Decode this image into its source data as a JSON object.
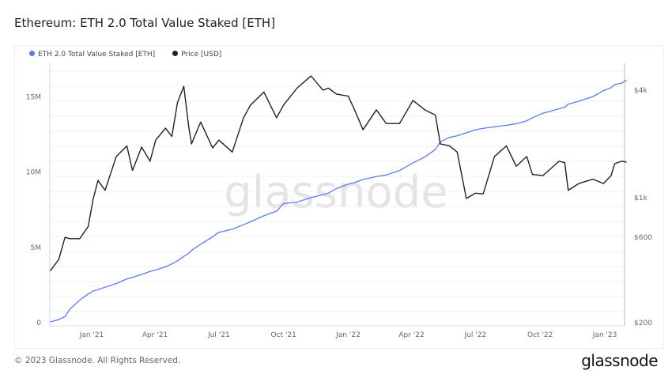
{
  "title": "Ethereum: ETH 2.0 Total Value Staked [ETH]",
  "footer": "© 2023 Glassnode. All Rights Reserved.",
  "brand": "glassnode",
  "watermark": "glassnode",
  "chart_data": {
    "type": "line",
    "title": "Ethereum: ETH 2.0 Total Value Staked [ETH]",
    "legend_position": "top-left",
    "grid": true,
    "x_ticks": [
      "Jan '21",
      "Apr '21",
      "Jul '21",
      "Oct '21",
      "Jan '22",
      "Apr '22",
      "Jul '22",
      "Oct '22",
      "Jan '23"
    ],
    "x_tick_dates": [
      "2021-01-01",
      "2021-04-01",
      "2021-07-01",
      "2021-10-01",
      "2022-01-01",
      "2022-04-01",
      "2022-07-01",
      "2022-10-01",
      "2023-01-01"
    ],
    "y_left": {
      "ticks": [
        "0",
        "5M",
        "10M",
        "15M"
      ],
      "tick_values": [
        0,
        5,
        10,
        15
      ],
      "unit": "M ETH",
      "range": [
        0,
        16.5
      ]
    },
    "y_right": {
      "scale": "log",
      "ticks": [
        "$200",
        "$600",
        "$1k",
        "$4k"
      ],
      "tick_values": [
        200,
        600,
        1000,
        4000
      ],
      "range": [
        190,
        5200
      ]
    },
    "x": [
      "2020-11-03",
      "2020-11-15",
      "2020-11-24",
      "2020-12-01",
      "2020-12-15",
      "2020-12-27",
      "2021-01-03",
      "2021-01-10",
      "2021-01-20",
      "2021-02-05",
      "2021-02-20",
      "2021-02-28",
      "2021-03-13",
      "2021-03-25",
      "2021-04-02",
      "2021-04-16",
      "2021-04-25",
      "2021-05-03",
      "2021-05-12",
      "2021-05-19",
      "2021-05-23",
      "2021-06-05",
      "2021-06-22",
      "2021-07-01",
      "2021-07-20",
      "2021-08-05",
      "2021-08-15",
      "2021-09-03",
      "2021-09-21",
      "2021-10-01",
      "2021-10-20",
      "2021-11-09",
      "2021-11-26",
      "2021-12-04",
      "2021-12-15",
      "2022-01-01",
      "2022-01-10",
      "2022-01-22",
      "2022-02-10",
      "2022-02-24",
      "2022-03-15",
      "2022-04-03",
      "2022-04-20",
      "2022-05-05",
      "2022-05-12",
      "2022-05-25",
      "2022-06-05",
      "2022-06-18",
      "2022-07-01",
      "2022-07-12",
      "2022-07-28",
      "2022-08-14",
      "2022-08-28",
      "2022-09-12",
      "2022-09-20",
      "2022-10-05",
      "2022-10-28",
      "2022-11-05",
      "2022-11-10",
      "2022-11-25",
      "2022-12-15",
      "2022-12-30",
      "2023-01-10",
      "2023-01-15",
      "2023-01-25",
      "2023-02-01"
    ],
    "series": [
      {
        "name": "ETH 2.0 Total Value Staked [ETH]",
        "color": "#5b7cf0",
        "axis": "left",
        "values": [
          0.05,
          0.2,
          0.4,
          0.9,
          1.5,
          1.9,
          2.1,
          2.2,
          2.35,
          2.6,
          2.9,
          3.0,
          3.2,
          3.4,
          3.5,
          3.7,
          3.9,
          4.1,
          4.4,
          4.6,
          4.8,
          5.2,
          5.7,
          6.0,
          6.2,
          6.5,
          6.7,
          7.1,
          7.4,
          7.9,
          8.0,
          8.3,
          8.5,
          8.6,
          8.9,
          9.2,
          9.3,
          9.5,
          9.7,
          9.8,
          10.1,
          10.6,
          11.0,
          11.5,
          12.0,
          12.3,
          12.4,
          12.6,
          12.8,
          12.9,
          13.0,
          13.1,
          13.2,
          13.4,
          13.6,
          13.9,
          14.2,
          14.3,
          14.5,
          14.7,
          15.0,
          15.4,
          15.6,
          15.8,
          15.9,
          16.1
        ]
      },
      {
        "name": "Price [USD]",
        "color": "#222222",
        "axis": "right",
        "values": [
          390,
          450,
          600,
          590,
          590,
          690,
          980,
          1250,
          1100,
          1700,
          1950,
          1420,
          1920,
          1600,
          2100,
          2450,
          2200,
          3400,
          4200,
          2500,
          2000,
          2650,
          1900,
          2100,
          1800,
          2800,
          3300,
          3900,
          2800,
          3300,
          4100,
          4800,
          4000,
          4100,
          3800,
          3700,
          3100,
          2400,
          3100,
          2600,
          2600,
          3500,
          3100,
          2900,
          2000,
          1950,
          1800,
          990,
          1060,
          1050,
          1700,
          1950,
          1500,
          1700,
          1350,
          1330,
          1600,
          1570,
          1100,
          1200,
          1270,
          1200,
          1330,
          1550,
          1600,
          1580
        ]
      }
    ]
  }
}
